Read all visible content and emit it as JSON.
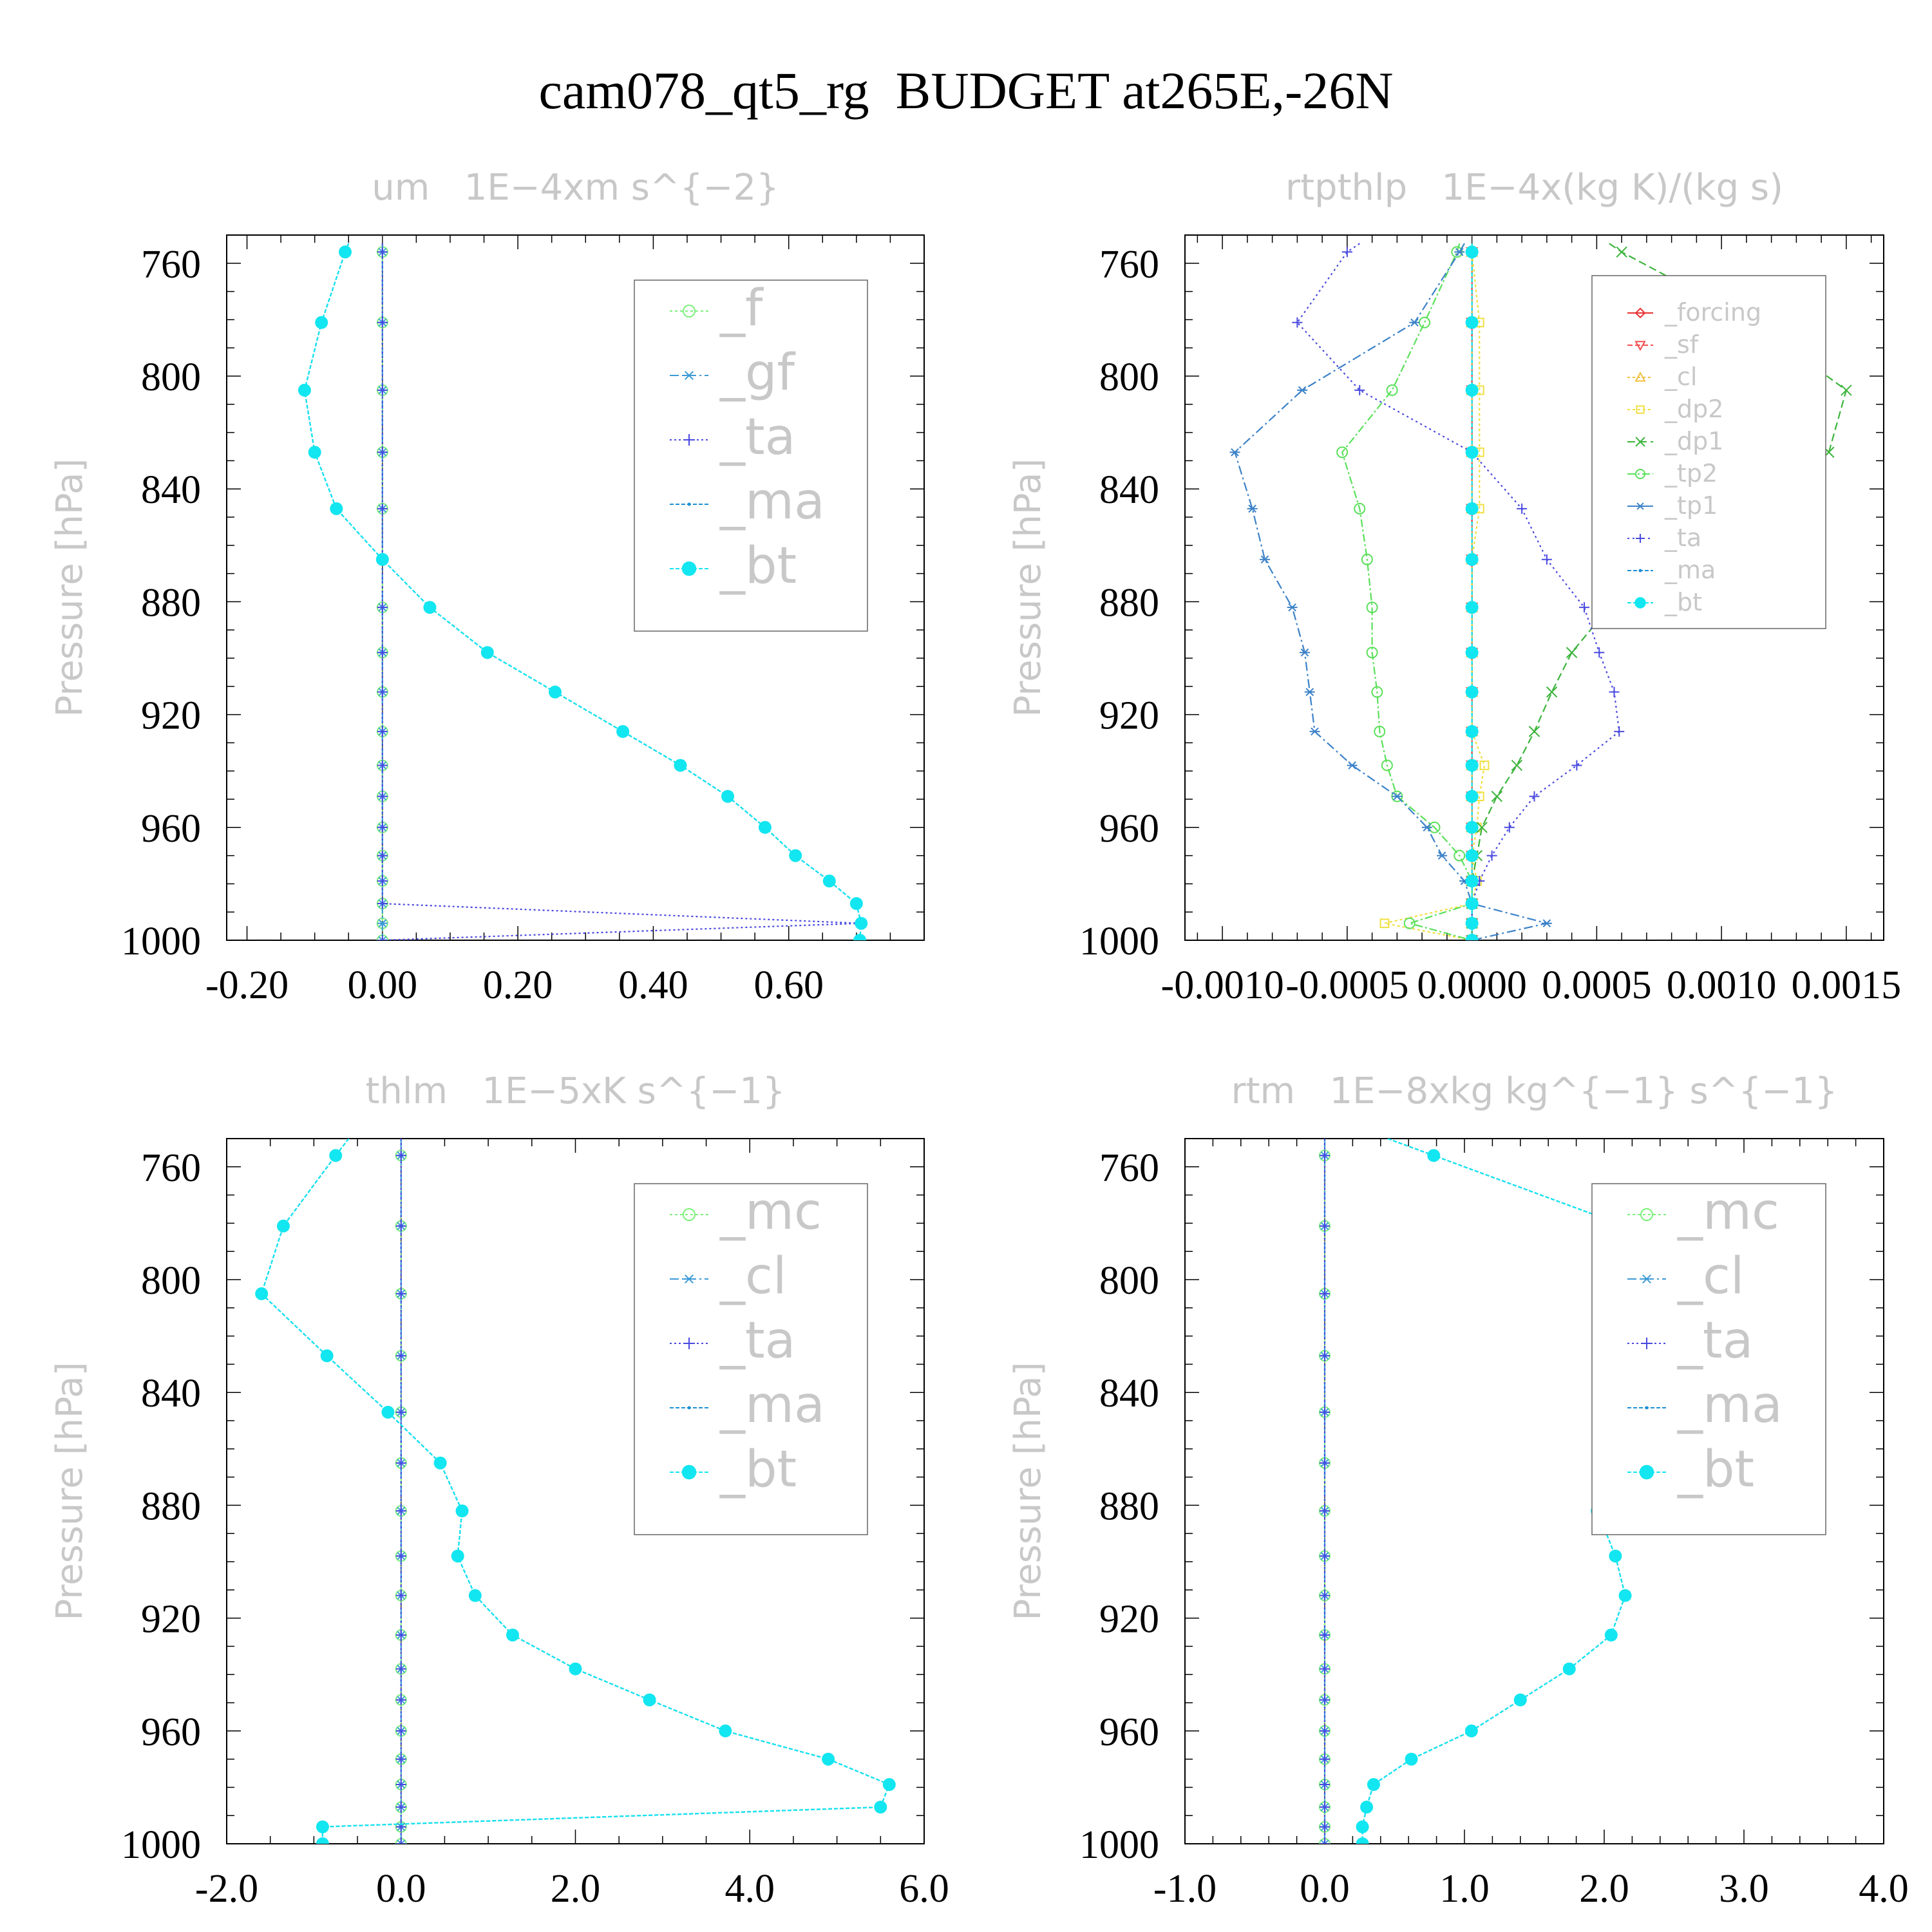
{
  "title": "cam078_qt5_rg  BUDGET at265E,-26N",
  "chart_data": [
    {
      "type": "line",
      "title": "um   1E−4xm s^{−2}",
      "ylabel": "Pressure [hPa]",
      "ylim": [
        1000,
        750
      ],
      "yticks": [
        760,
        800,
        840,
        880,
        920,
        960,
        1000
      ],
      "xlim": [
        -0.23,
        0.8
      ],
      "xticks": [
        -0.2,
        0.0,
        0.2,
        0.4,
        0.6
      ],
      "xtick_labels": [
        "-0.20",
        "0.00",
        "0.20",
        "0.40",
        "0.60"
      ],
      "x_minor_step": 0.05,
      "legend_position": "top-right",
      "legend_font": 78,
      "legend_rows": 100,
      "y": [
        753,
        756,
        781,
        805,
        827,
        847,
        865,
        882,
        898,
        912,
        926,
        938,
        949,
        960,
        970,
        979,
        987,
        994,
        1000
      ],
      "series": [
        {
          "name": "_f",
          "color": "#7cf07c",
          "marker": "circle",
          "dash": "4 4",
          "values": [
            0,
            0,
            0,
            0,
            0,
            0,
            0,
            0,
            0,
            0,
            0,
            0,
            0,
            0,
            0,
            0,
            0,
            0,
            0
          ]
        },
        {
          "name": "_gf",
          "color": "#3c9ad6",
          "marker": "star",
          "dash": "14 5 3 5",
          "values": [
            0,
            0,
            0,
            0,
            0,
            0,
            0,
            0,
            0,
            0,
            0,
            0,
            0,
            0,
            0,
            0,
            0,
            0,
            0
          ]
        },
        {
          "name": "_ta",
          "color": "#4848e0",
          "marker": "plus",
          "dash": "3 4",
          "values": [
            0,
            0,
            0,
            0,
            0,
            0,
            0,
            0,
            0,
            0,
            0,
            0,
            0,
            0,
            0,
            0,
            0,
            0.707,
            0
          ]
        },
        {
          "name": "_ma",
          "color": "#1a8fd8",
          "marker": "dot",
          "dash": "6 3",
          "values": [
            -0.05,
            -0.055,
            -0.09,
            -0.115,
            -0.1,
            -0.068,
            0,
            0.07,
            0.155,
            0.255,
            0.355,
            0.44,
            0.51,
            0.565,
            0.61,
            0.66,
            0.7,
            0.707,
            0.705
          ]
        },
        {
          "name": "_bt",
          "color": "#12e6f0",
          "marker": "disc",
          "dash": "6 3",
          "values": [
            -0.05,
            -0.055,
            -0.09,
            -0.115,
            -0.1,
            -0.068,
            0,
            0.07,
            0.155,
            0.255,
            0.355,
            0.44,
            0.51,
            0.565,
            0.61,
            0.66,
            0.7,
            0.707,
            0.705
          ]
        }
      ]
    },
    {
      "type": "line",
      "title": "rtpthlp   1E−4x(kg K)/(kg s)",
      "ylabel": "Pressure [hPa]",
      "ylim": [
        1000,
        750
      ],
      "yticks": [
        760,
        800,
        840,
        880,
        920,
        960,
        1000
      ],
      "xlim": [
        -0.00115,
        0.00165
      ],
      "xticks": [
        -0.001,
        -0.0005,
        0.0,
        0.0005,
        0.001,
        0.0015
      ],
      "xtick_labels": [
        "-0.0010",
        "-0.0005",
        "0.0000",
        "0.0005",
        "0.0010",
        "0.0015"
      ],
      "x_minor_step": 0.0001,
      "legend_position": "top-right",
      "legend_font": 38,
      "legend_rows": 50,
      "y": [
        753,
        756,
        781,
        805,
        827,
        847,
        865,
        882,
        898,
        912,
        926,
        938,
        949,
        960,
        970,
        979,
        987,
        994,
        1000
      ],
      "series": [
        {
          "name": "_forcing",
          "color": "#e63232",
          "marker": "diamond",
          "dash": "none",
          "values": [
            0,
            0,
            0,
            0,
            0,
            0,
            0,
            0,
            0,
            0,
            0,
            0,
            0,
            0,
            0,
            0,
            0,
            0,
            0
          ]
        },
        {
          "name": "_sf",
          "color": "#f05050",
          "marker": "tri-down",
          "dash": "8 4",
          "values": [
            0,
            0,
            0,
            0,
            0,
            0,
            0,
            0,
            0,
            0,
            0,
            0,
            0,
            0,
            0,
            0,
            0,
            0,
            0
          ]
        },
        {
          "name": "_cl",
          "color": "#f0c040",
          "marker": "tri-up",
          "dash": "4 4",
          "values": [
            0,
            0,
            0,
            0,
            0,
            0,
            0,
            0,
            0,
            0,
            0,
            0,
            0,
            0,
            0,
            0,
            0,
            0,
            0
          ]
        },
        {
          "name": "_dp2",
          "color": "#f0e040",
          "marker": "square",
          "dash": "4 4",
          "values": [
            0,
            0,
            3e-05,
            3e-05,
            3e-05,
            3e-05,
            0,
            0,
            0,
            0,
            0,
            5e-05,
            3e-05,
            2e-05,
            0,
            2e-05,
            0,
            -0.00035,
            0
          ]
        },
        {
          "name": "_dp1",
          "color": "#3cb43c",
          "marker": "x",
          "dash": "12 6",
          "values": [
            0.00055,
            0.0006,
            0.00113,
            0.0015,
            0.00143,
            0.00113,
            0.00078,
            0.00055,
            0.0004,
            0.00032,
            0.00025,
            0.00018,
            0.0001,
            4e-05,
            2e-05,
            0,
            0,
            0,
            0
          ]
        },
        {
          "name": "_tp2",
          "color": "#5ae05a",
          "marker": "circle",
          "dash": "12 4 3 4",
          "values": [
            -5e-05,
            -6e-05,
            -0.00019,
            -0.00032,
            -0.00052,
            -0.00045,
            -0.00042,
            -0.0004,
            -0.0004,
            -0.00038,
            -0.00037,
            -0.00034,
            -0.0003,
            -0.00015,
            -5e-05,
            0,
            0,
            -0.00025,
            0
          ]
        },
        {
          "name": "_tp1",
          "color": "#3c82c8",
          "marker": "star",
          "dash": "14 5 3 5",
          "values": [
            -3e-05,
            -5e-05,
            -0.00023,
            -0.00068,
            -0.00095,
            -0.00088,
            -0.00083,
            -0.00072,
            -0.00067,
            -0.00065,
            -0.00063,
            -0.00048,
            -0.0003,
            -0.00018,
            -0.00012,
            -3e-05,
            0,
            0.0003,
            0
          ]
        },
        {
          "name": "_ta",
          "color": "#4a4ae0",
          "marker": "plus",
          "dash": "3 5",
          "values": [
            -0.00045,
            -0.0005,
            -0.0007,
            -0.00045,
            0,
            0.0002,
            0.0003,
            0.00045,
            0.00051,
            0.00057,
            0.00059,
            0.00042,
            0.00025,
            0.00015,
            8e-05,
            3e-05,
            0,
            0,
            0
          ]
        },
        {
          "name": "_ma",
          "color": "#1a8fd8",
          "marker": "dot",
          "dash": "6 3",
          "values": [
            0,
            0,
            0,
            0,
            0,
            0,
            0,
            0,
            0,
            0,
            0,
            0,
            0,
            0,
            0,
            0,
            0,
            0,
            0
          ]
        },
        {
          "name": "_bt",
          "color": "#12e6f0",
          "marker": "disc",
          "dash": "6 3",
          "values": [
            0,
            0,
            0,
            0,
            0,
            0,
            0,
            0,
            0,
            0,
            0,
            0,
            0,
            0,
            0,
            0,
            0,
            0,
            0
          ]
        }
      ]
    },
    {
      "type": "line",
      "title": "thlm   1E−5xK s^{−1}",
      "ylabel": "Pressure [hPa]",
      "ylim": [
        1000,
        750
      ],
      "yticks": [
        760,
        800,
        840,
        880,
        920,
        960,
        1000
      ],
      "xlim": [
        -2.0,
        6.0
      ],
      "xticks": [
        -2.0,
        0.0,
        2.0,
        4.0,
        6.0
      ],
      "xtick_labels": [
        "-2.0",
        "0.0",
        "2.0",
        "4.0",
        "6.0"
      ],
      "x_minor_step": 0.5,
      "legend_position": "top-right",
      "legend_font": 78,
      "legend_rows": 100,
      "y": [
        750,
        756,
        781,
        805,
        827,
        847,
        865,
        882,
        898,
        912,
        926,
        938,
        949,
        960,
        970,
        979,
        987,
        994,
        1000
      ],
      "series": [
        {
          "name": "_mc",
          "color": "#7cf07c",
          "marker": "circle",
          "dash": "4 4",
          "values": [
            0,
            0,
            0,
            0,
            0,
            0,
            0,
            0,
            0,
            0,
            0,
            0,
            0,
            0,
            0,
            0,
            0,
            0,
            0
          ]
        },
        {
          "name": "_cl",
          "color": "#3c9ad6",
          "marker": "star",
          "dash": "14 5 3 5",
          "values": [
            0,
            0,
            0,
            0,
            0,
            0,
            0,
            0,
            0,
            0,
            0,
            0,
            0,
            0,
            0,
            0,
            0,
            0,
            0
          ]
        },
        {
          "name": "_ta",
          "color": "#4848e0",
          "marker": "plus",
          "dash": "3 4",
          "values": [
            0,
            0,
            0,
            0,
            0,
            0,
            0,
            0,
            0,
            0,
            0,
            0,
            0,
            0,
            0,
            0,
            0,
            0,
            0
          ]
        },
        {
          "name": "_ma",
          "color": "#1a8fd8",
          "marker": "dot",
          "dash": "6 3",
          "values": [
            -0.6,
            -0.75,
            -1.35,
            -1.6,
            -0.85,
            -0.15,
            0.45,
            0.7,
            0.65,
            0.85,
            1.28,
            2.0,
            2.85,
            3.72,
            4.9,
            5.6,
            5.5,
            -0.9,
            -0.9
          ]
        },
        {
          "name": "_bt",
          "color": "#12e6f0",
          "marker": "disc",
          "dash": "6 3",
          "values": [
            -0.6,
            -0.75,
            -1.35,
            -1.6,
            -0.85,
            -0.15,
            0.45,
            0.7,
            0.65,
            0.85,
            1.28,
            2.0,
            2.85,
            3.72,
            4.9,
            5.6,
            5.5,
            -0.9,
            -0.9
          ]
        }
      ]
    },
    {
      "type": "line",
      "title": "rtm   1E−8xkg kg^{−1} s^{−1}",
      "ylabel": "Pressure [hPa]",
      "ylim": [
        1000,
        750
      ],
      "yticks": [
        760,
        800,
        840,
        880,
        920,
        960,
        1000
      ],
      "xlim": [
        -1.0,
        4.0
      ],
      "xticks": [
        -1.0,
        0.0,
        1.0,
        2.0,
        3.0,
        4.0
      ],
      "xtick_labels": [
        "-1.0",
        "0.0",
        "1.0",
        "2.0",
        "3.0",
        "4.0"
      ],
      "x_minor_step": 0.2,
      "legend_position": "top-right",
      "legend_font": 78,
      "legend_rows": 100,
      "y": [
        750,
        756,
        781,
        805,
        827,
        847,
        865,
        882,
        898,
        912,
        926,
        938,
        949,
        960,
        970,
        979,
        987,
        994,
        1000
      ],
      "series": [
        {
          "name": "_mc",
          "color": "#7cf07c",
          "marker": "circle",
          "dash": "4 4",
          "values": [
            0,
            0,
            0,
            0,
            0,
            0,
            0,
            0,
            0,
            0,
            0,
            0,
            0,
            0,
            0,
            0,
            0,
            0,
            0
          ]
        },
        {
          "name": "_cl",
          "color": "#3c9ad6",
          "marker": "star",
          "dash": "14 5 3 5",
          "values": [
            0,
            0,
            0,
            0,
            0,
            0,
            0,
            0,
            0,
            0,
            0,
            0,
            0,
            0,
            0,
            0,
            0,
            0,
            0
          ]
        },
        {
          "name": "_ta",
          "color": "#4848e0",
          "marker": "plus",
          "dash": "3 4",
          "values": [
            0,
            0,
            0,
            0,
            0,
            0,
            0,
            0,
            0,
            0,
            0,
            0,
            0,
            0,
            0,
            0,
            0,
            0,
            0
          ]
        },
        {
          "name": "_ma",
          "color": "#1a8fd8",
          "marker": "dot",
          "dash": "6 3",
          "values": [
            0.45,
            0.78,
            2.15,
            3.35,
            3.0,
            2.5,
            2.2,
            1.95,
            2.08,
            2.15,
            2.05,
            1.75,
            1.4,
            1.05,
            0.62,
            0.35,
            0.3,
            0.27,
            0.27
          ]
        },
        {
          "name": "_bt",
          "color": "#12e6f0",
          "marker": "disc",
          "dash": "6 3",
          "values": [
            0.45,
            0.78,
            2.15,
            3.35,
            3.0,
            2.5,
            2.2,
            1.95,
            2.08,
            2.15,
            2.05,
            1.75,
            1.4,
            1.05,
            0.62,
            0.35,
            0.3,
            0.27,
            0.27
          ]
        }
      ]
    }
  ]
}
